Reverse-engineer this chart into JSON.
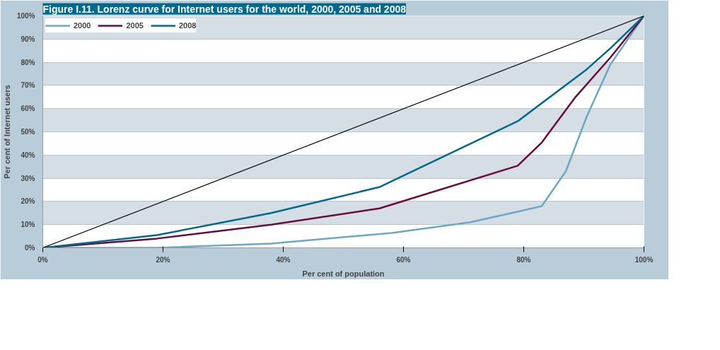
{
  "chart_data": {
    "type": "line",
    "title": "Figure I.11. Lorenz curve for Internet users for the world, 2000, 2005 and 2008",
    "xlabel": "Per cent of population",
    "ylabel": "Per cent of Internet users",
    "series": [
      {
        "name": "2000",
        "color": "#6aa8c4",
        "x": [
          0,
          19,
          38,
          58,
          71,
          78,
          83,
          87,
          90.5,
          94.4,
          100
        ],
        "values": [
          0,
          0,
          1.8,
          6.4,
          11,
          15,
          18,
          33,
          56.7,
          79,
          100
        ]
      },
      {
        "name": "2005",
        "color": "#6b0a3e",
        "x": [
          0,
          19,
          38,
          56,
          79,
          83,
          88.6,
          94.4,
          100
        ],
        "values": [
          0,
          4,
          10,
          17,
          35.4,
          45.4,
          65,
          82,
          100
        ]
      },
      {
        "name": "2008",
        "color": "#00698c",
        "x": [
          0,
          19,
          38,
          56,
          79,
          90.5,
          94.4,
          100
        ],
        "values": [
          0,
          5.5,
          15,
          26.2,
          54.6,
          77,
          86,
          100
        ]
      },
      {
        "color": "#000000",
        "x": [
          0,
          100
        ],
        "values": [
          0,
          100
        ]
      }
    ],
    "xlim": [
      0,
      100
    ],
    "ylim": [
      0,
      100
    ],
    "xticks": [
      {
        "value": 0,
        "label": "0%"
      },
      {
        "value": 20,
        "label": "20%"
      },
      {
        "value": 40,
        "label": "40%"
      },
      {
        "value": 60,
        "label": "60%"
      },
      {
        "value": 80,
        "label": "80%"
      },
      {
        "value": 100,
        "label": "100%"
      }
    ],
    "yticks": [
      {
        "value": 0,
        "label": "0%"
      },
      {
        "value": 10,
        "label": "10%"
      },
      {
        "value": 20,
        "label": "20%"
      },
      {
        "value": 30,
        "label": "30%"
      },
      {
        "value": 40,
        "label": "40%"
      },
      {
        "value": 50,
        "label": "50%"
      },
      {
        "value": 60,
        "label": "60%"
      },
      {
        "value": 70,
        "label": "70%"
      },
      {
        "value": 80,
        "label": "80%"
      },
      {
        "value": 90,
        "label": "90%"
      },
      {
        "value": 100,
        "label": "100%"
      }
    ],
    "grid": "y",
    "legend": "top left",
    "marker": "none",
    "line_style": "solid"
  }
}
